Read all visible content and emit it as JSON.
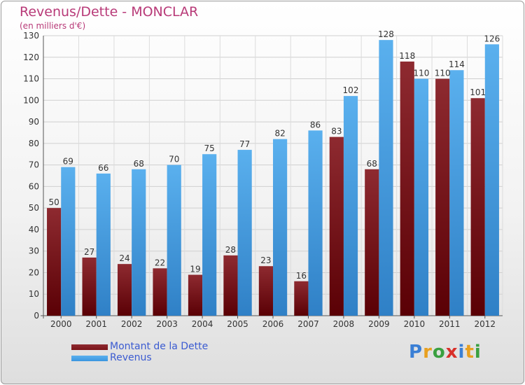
{
  "chart_data": {
    "type": "bar",
    "title": "Revenus/Dette - MONCLAR",
    "subtitle": "(en milliers d'€)",
    "categories": [
      "2000",
      "2001",
      "2002",
      "2003",
      "2004",
      "2005",
      "2006",
      "2007",
      "2008",
      "2009",
      "2010",
      "2011",
      "2012"
    ],
    "series": [
      {
        "name": "Montant de la Dette",
        "color": "#7a1418",
        "values": [
          50,
          27,
          24,
          22,
          19,
          28,
          23,
          16,
          83,
          68,
          118,
          110,
          101
        ]
      },
      {
        "name": "Revenus",
        "color": "#3a95df",
        "values": [
          69,
          66,
          68,
          70,
          75,
          77,
          82,
          86,
          102,
          128,
          110,
          114,
          126
        ]
      }
    ],
    "ylim": [
      0,
      130
    ],
    "yticks": [
      0,
      10,
      20,
      30,
      40,
      50,
      60,
      70,
      80,
      90,
      100,
      110,
      120,
      130
    ],
    "grid": true,
    "legend": "bottom-left"
  },
  "logo": {
    "letters": [
      {
        "ch": "P",
        "color": "#3a7fd5"
      },
      {
        "ch": "r",
        "color": "#e8a020"
      },
      {
        "ch": "o",
        "color": "#3aa040"
      },
      {
        "ch": "x",
        "color": "#d8302a"
      },
      {
        "ch": "i",
        "color": "#3a7fd5"
      },
      {
        "ch": "t",
        "color": "#e8a020"
      },
      {
        "ch": "i",
        "color": "#3aa040"
      }
    ]
  }
}
